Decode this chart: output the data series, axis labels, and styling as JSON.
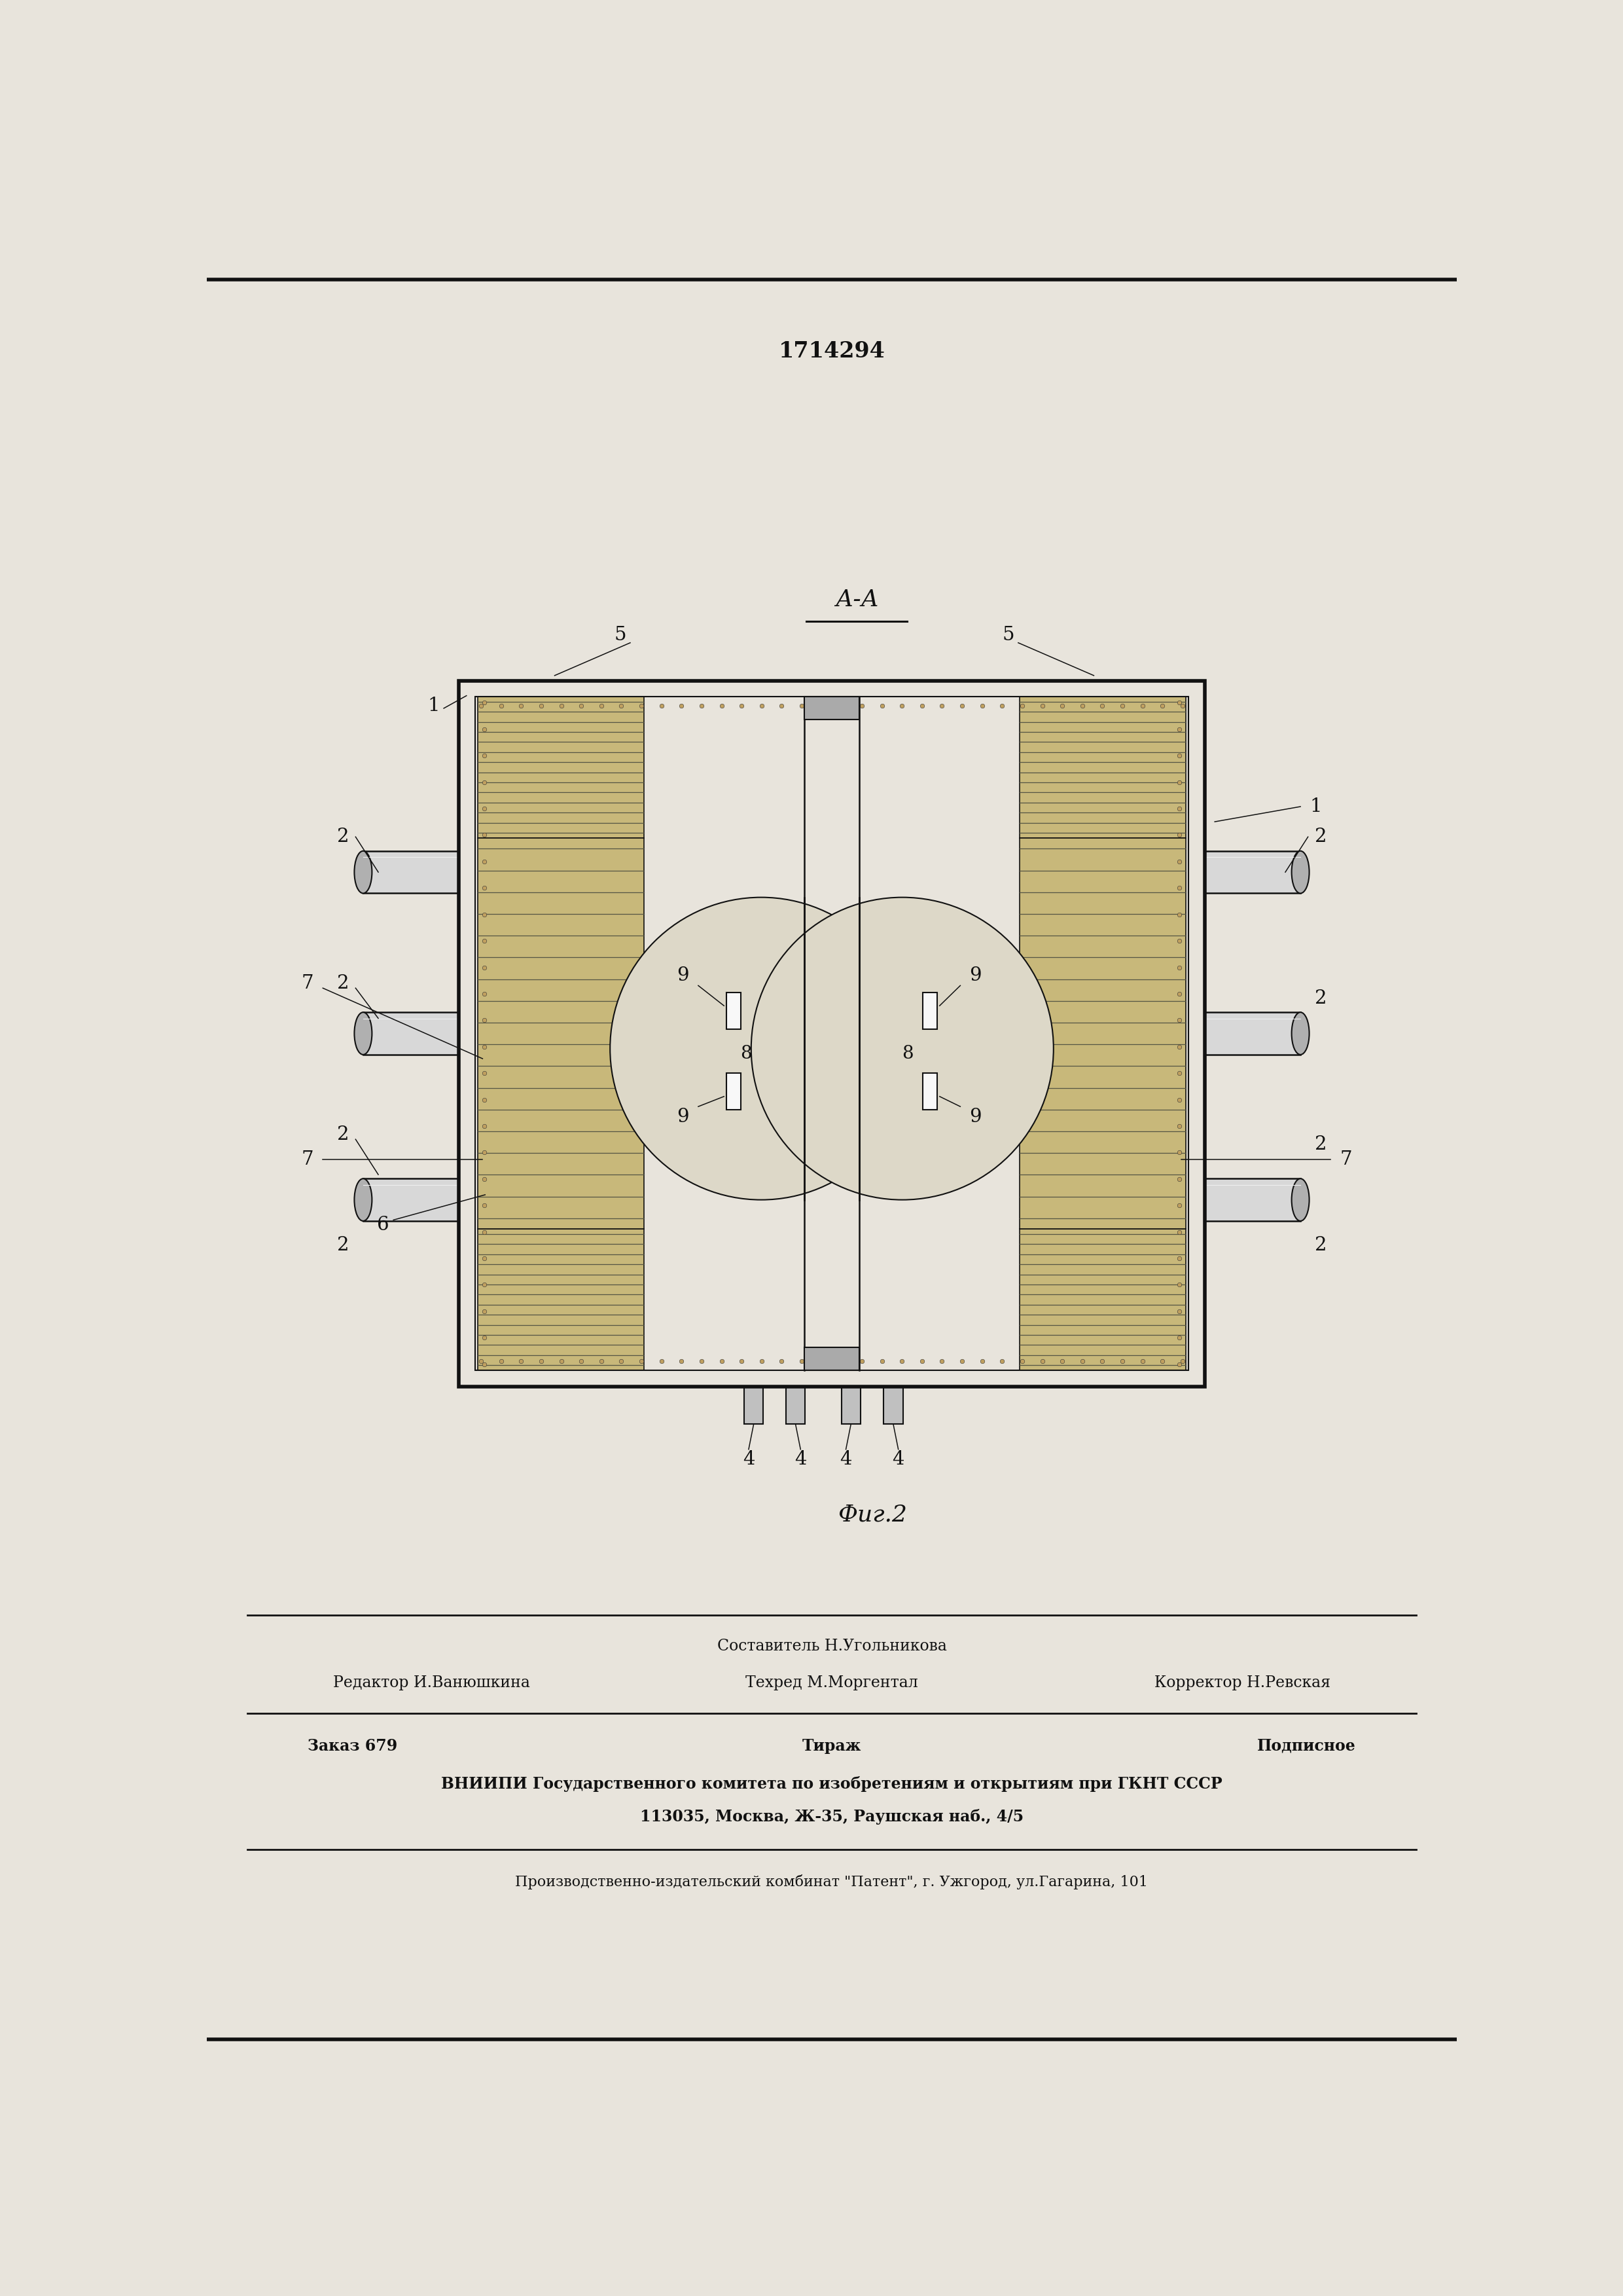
{
  "patent_number": "1714294",
  "fig_label": "Фиг.2",
  "section_label": "А-А",
  "bg_color": "#e8e4dc",
  "line_color": "#111111",
  "panel_color": "#c8b87a",
  "panel_line_color": "#666666",
  "bolt_color": "#c0a060",
  "pipe_color": "#cccccc",
  "furnace_color": "#ddd8c8",
  "editor_line1": "Составитель Н.Угольникова",
  "editor_line2_col1": "Редактор И.Ванюшкина",
  "editor_line2_col2": "Техред М.Моргентал",
  "editor_line2_col3": "Корректор Н.Ревская",
  "footer_col1": "Заказ 679",
  "footer_col2": "Тираж",
  "footer_col3": "Подписное",
  "footer_line2": "ВНИИПИ Государственного комитета по изобретениям и открытиям при ГКНТ СССР",
  "footer_line3": "113035, Москва, Ж-35, Раушская наб., 4/5",
  "footer_line4": "Производственно-издательский комбинат \"Патент\", г. Ужгород, ул.Гагарина, 101"
}
